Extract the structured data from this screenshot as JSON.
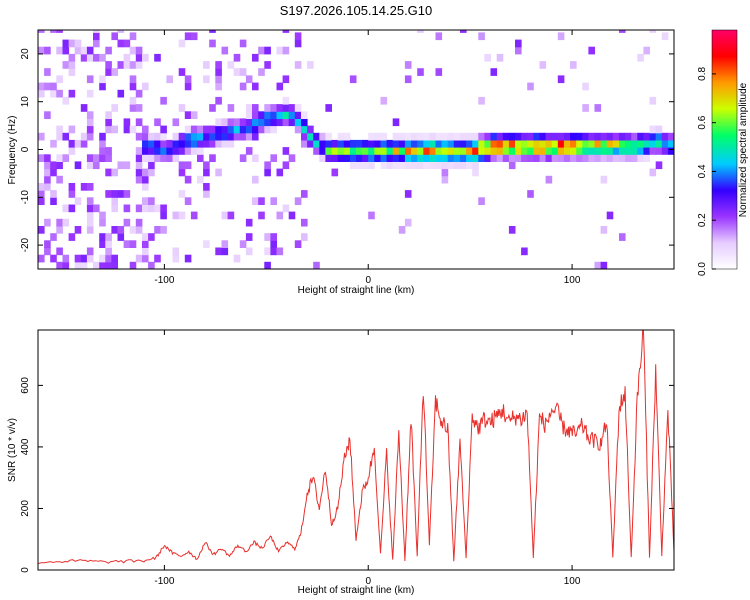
{
  "chart_data": [
    {
      "type": "heatmap",
      "panel": "spectrogram",
      "title": "S197.2026.105.14.25.G10",
      "xlabel": "Height of straight line (km)",
      "ylabel": "Frequency (Hz)",
      "xlim": [
        -162,
        150
      ],
      "ylim": [
        -25,
        25
      ],
      "xticks": [
        -100,
        0,
        100
      ],
      "xtick_labels": [
        "-100",
        "0",
        "100"
      ],
      "yticks": [
        -20,
        -10,
        0,
        10,
        20
      ],
      "ytick_labels": [
        "-20",
        "-10",
        "0",
        "10",
        "20"
      ],
      "ridge": {
        "x": [
          -110,
          -100,
          -90,
          -80,
          -70,
          -60,
          -50,
          -40,
          -35,
          -30,
          -25,
          -20,
          -10,
          0,
          10,
          20,
          30,
          40,
          50,
          60,
          70,
          80,
          90,
          100,
          110,
          120,
          130,
          140,
          150
        ],
        "freq_hz": [
          0,
          -1,
          1,
          2,
          3,
          4,
          6,
          7,
          5,
          2,
          0,
          -1,
          -1,
          -1,
          -1,
          -1,
          -1,
          -1,
          -1,
          0,
          0,
          0,
          0,
          0,
          0,
          0,
          0,
          1,
          0
        ],
        "amplitude": [
          0.45,
          0.4,
          0.45,
          0.4,
          0.45,
          0.4,
          0.45,
          0.5,
          0.45,
          0.5,
          0.45,
          0.6,
          0.6,
          0.65,
          0.7,
          0.75,
          0.8,
          0.75,
          0.85,
          0.9,
          0.85,
          0.9,
          0.9,
          0.85,
          0.8,
          0.7,
          0.65,
          0.55,
          0.5
        ]
      },
      "colorbar": {
        "label": "Normalized spectral amplitude",
        "range": [
          0.0,
          0.98
        ],
        "ticks": [
          0.0,
          0.2,
          0.4,
          0.6,
          0.8
        ],
        "tick_labels": [
          "0.0",
          "0.2",
          "0.4",
          "0.6",
          "0.8"
        ],
        "colors": [
          "#ffffff",
          "#e6ccff",
          "#9933ff",
          "#3300ff",
          "#00ccff",
          "#00ff66",
          "#ccff00",
          "#ff9900",
          "#ff0000",
          "#ff0066"
        ]
      }
    },
    {
      "type": "line",
      "panel": "snr",
      "xlabel": "Height of straight line (km)",
      "ylabel": "SNR (10 * v/v)",
      "xlim": [
        -162,
        150
      ],
      "ylim": [
        0,
        780
      ],
      "xticks": [
        -100,
        0,
        100
      ],
      "xtick_labels": [
        "-100",
        "0",
        "100"
      ],
      "yticks": [
        0,
        200,
        400,
        600
      ],
      "ytick_labels": [
        "0",
        "200",
        "400",
        "600"
      ],
      "series": [
        {
          "name": "SNR",
          "color": "#e8302c",
          "x": [
            -162,
            -150,
            -140,
            -130,
            -120,
            -110,
            -104,
            -100,
            -96,
            -92,
            -88,
            -84,
            -80,
            -76,
            -72,
            -68,
            -64,
            -60,
            -56,
            -52,
            -48,
            -44,
            -40,
            -36,
            -33,
            -30,
            -27,
            -24,
            -21,
            -18,
            -15,
            -12,
            -9,
            -6,
            -3,
            0,
            3,
            6,
            9,
            12,
            15,
            18,
            21,
            24,
            27,
            30,
            33,
            36,
            39,
            42,
            45,
            48,
            51,
            54,
            57,
            60,
            63,
            66,
            69,
            72,
            75,
            78,
            81,
            84,
            87,
            90,
            93,
            96,
            99,
            102,
            105,
            108,
            111,
            114,
            117,
            120,
            123,
            126,
            129,
            132,
            135,
            138,
            141,
            144,
            147,
            150
          ],
          "values": [
            25,
            28,
            30,
            26,
            28,
            30,
            40,
            80,
            55,
            45,
            60,
            35,
            90,
            50,
            70,
            45,
            80,
            60,
            90,
            70,
            110,
            60,
            90,
            70,
            120,
            250,
            300,
            200,
            330,
            150,
            200,
            350,
            430,
            100,
            250,
            300,
            400,
            50,
            380,
            30,
            450,
            30,
            500,
            40,
            600,
            80,
            550,
            480,
            460,
            30,
            420,
            40,
            500,
            460,
            490,
            480,
            500,
            520,
            480,
            500,
            490,
            510,
            40,
            500,
            470,
            520,
            510,
            460,
            450,
            440,
            470,
            430,
            420,
            410,
            480,
            40,
            520,
            580,
            40,
            560,
            780,
            40,
            650,
            50,
            520,
            60
          ]
        }
      ]
    }
  ]
}
